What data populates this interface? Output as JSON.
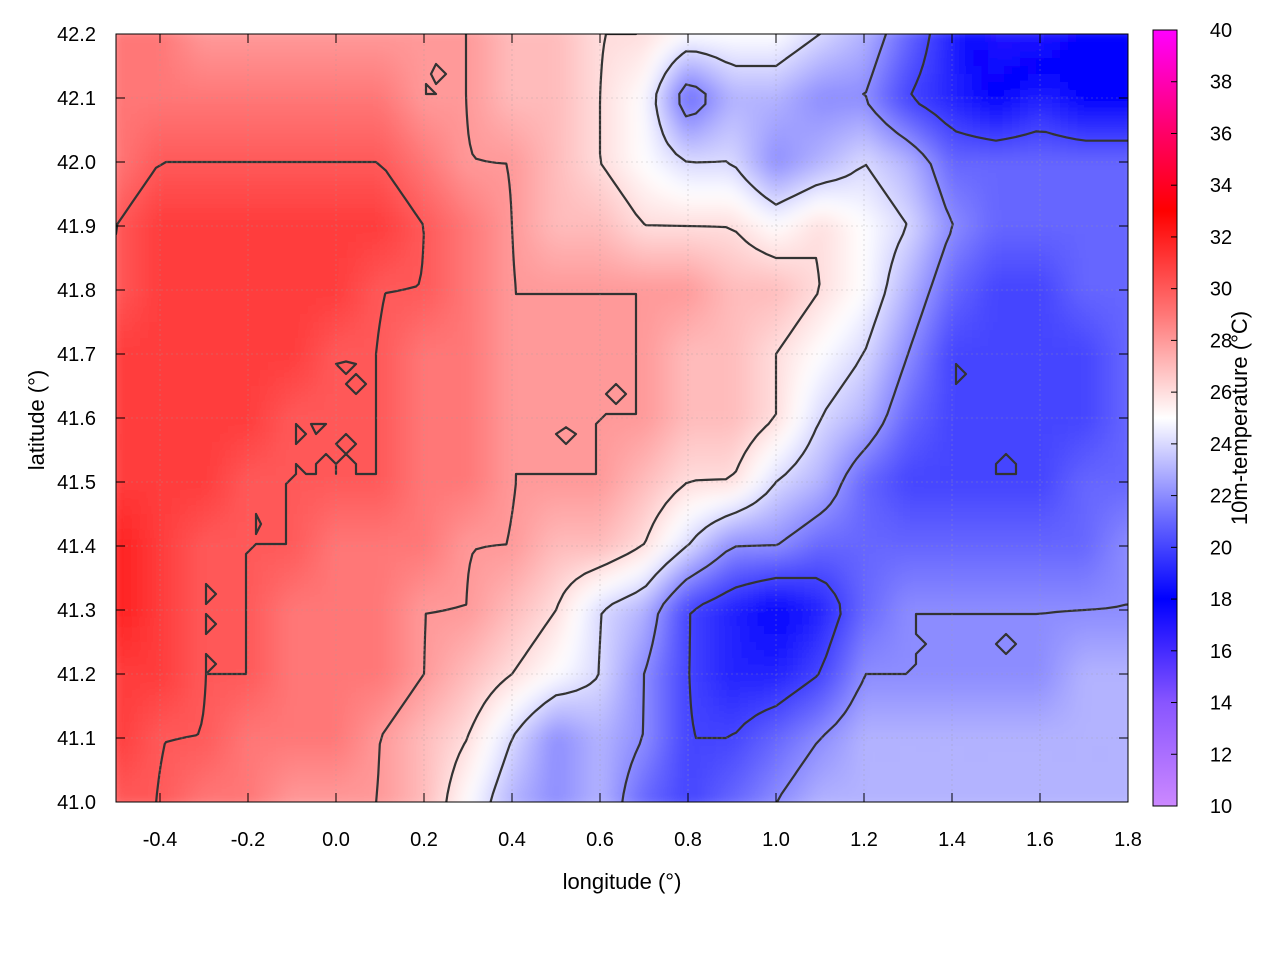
{
  "chart_data": {
    "type": "heatmap",
    "title": "",
    "xlabel": "longitude (°)",
    "ylabel": "latitude (°)",
    "colorbar_label": "10m-temperature (°C)",
    "xlim": [
      -0.5,
      1.8
    ],
    "ylim": [
      41.0,
      42.2
    ],
    "x_ticks": [
      "-0.4",
      "-0.2",
      "0.0",
      "0.2",
      "0.4",
      "0.6",
      "0.8",
      "1.0",
      "1.2",
      "1.4",
      "1.6",
      "1.8"
    ],
    "y_ticks": [
      "41.0",
      "41.1",
      "41.2",
      "41.3",
      "41.4",
      "41.5",
      "41.6",
      "41.7",
      "41.8",
      "41.9",
      "42.0",
      "42.1",
      "42.2"
    ],
    "colorbar_range": [
      10,
      40
    ],
    "colorbar_ticks": [
      "10",
      "12",
      "14",
      "16",
      "18",
      "20",
      "22",
      "24",
      "26",
      "28",
      "30",
      "32",
      "34",
      "36",
      "38",
      "40"
    ],
    "colormap": [
      {
        "value": 10,
        "color": "#cc88ff"
      },
      {
        "value": 14,
        "color": "#8855ff"
      },
      {
        "value": 18,
        "color": "#0000ff"
      },
      {
        "value": 21,
        "color": "#6666ff"
      },
      {
        "value": 25,
        "color": "#ffffff"
      },
      {
        "value": 29,
        "color": "#ff7777"
      },
      {
        "value": 33,
        "color": "#ff0000"
      },
      {
        "value": 36,
        "color": "#ff0066"
      },
      {
        "value": 40,
        "color": "#ff00ff"
      }
    ],
    "grid": true,
    "contour_color": "#333333",
    "field": {
      "longitudes": [
        -0.5,
        -0.4,
        -0.3,
        -0.2,
        -0.1,
        0.0,
        0.1,
        0.2,
        0.3,
        0.4,
        0.5,
        0.6,
        0.7,
        0.8,
        0.9,
        1.0,
        1.1,
        1.2,
        1.3,
        1.4,
        1.5,
        1.6,
        1.7,
        1.8
      ],
      "latitudes": [
        42.2,
        42.1,
        42.0,
        41.9,
        41.8,
        41.7,
        41.6,
        41.5,
        41.4,
        41.3,
        41.2,
        41.1,
        41.0
      ],
      "temperature": [
        [
          29,
          29,
          28,
          28,
          28,
          28,
          28,
          28,
          28,
          27,
          27,
          26,
          26,
          25,
          25,
          25,
          24,
          23,
          21,
          19,
          17,
          17,
          18,
          18
        ],
        [
          29,
          29,
          29,
          29,
          29,
          29,
          29,
          28,
          28,
          27,
          27,
          26,
          25,
          21,
          23,
          23,
          22,
          22,
          20,
          19,
          18,
          19,
          18,
          18
        ],
        [
          29,
          30,
          30,
          30,
          30,
          30,
          30,
          29,
          28,
          28,
          27,
          26,
          25,
          24,
          24,
          22,
          23,
          24,
          23,
          21,
          21,
          21,
          21,
          21
        ],
        [
          30,
          31,
          31,
          31,
          31,
          31,
          31,
          30,
          29,
          28,
          27,
          27,
          26,
          26,
          26,
          25,
          26,
          25,
          24,
          22,
          21,
          21,
          21,
          21
        ],
        [
          30,
          31,
          31,
          31,
          31,
          31,
          30,
          30,
          29,
          28,
          28,
          28,
          28,
          28,
          27,
          27,
          26,
          25,
          23,
          21,
          20,
          20,
          21,
          21
        ],
        [
          31,
          31,
          31,
          31,
          31,
          30,
          30,
          29,
          29,
          28,
          28,
          28,
          28,
          27,
          27,
          26,
          25,
          24,
          22,
          20,
          20,
          20,
          20,
          21
        ],
        [
          31,
          31,
          31,
          31,
          30,
          30,
          30,
          29,
          29,
          28,
          28,
          28,
          28,
          27,
          27,
          26,
          24,
          23,
          21,
          20,
          20,
          20,
          20,
          21
        ],
        [
          31,
          31,
          31,
          30,
          30,
          30,
          30,
          29,
          29,
          28,
          28,
          28,
          27,
          26,
          26,
          24,
          23,
          21,
          20,
          20,
          20,
          20,
          21,
          21
        ],
        [
          32,
          31,
          30,
          30,
          30,
          29,
          29,
          29,
          28,
          28,
          27,
          27,
          26,
          24,
          22,
          22,
          21,
          21,
          21,
          21,
          21,
          21,
          21,
          22
        ],
        [
          32,
          31,
          30,
          30,
          29,
          29,
          29,
          28,
          28,
          27,
          26,
          24,
          23,
          20,
          19,
          18,
          19,
          21,
          22,
          22,
          22,
          22,
          22,
          22
        ],
        [
          31,
          31,
          30,
          30,
          29,
          29,
          29,
          28,
          27,
          26,
          25,
          24,
          22,
          20,
          19,
          19,
          20,
          22,
          22,
          22,
          22,
          22,
          23,
          23
        ],
        [
          31,
          30,
          30,
          29,
          29,
          29,
          28,
          27,
          26,
          24,
          22,
          23,
          22,
          20,
          20,
          21,
          22,
          23,
          23,
          23,
          23,
          23,
          23,
          23
        ],
        [
          30,
          30,
          29,
          29,
          28,
          28,
          28,
          27,
          25,
          23,
          22,
          23,
          21,
          20,
          21,
          22,
          23,
          23,
          23,
          23,
          23,
          23,
          23,
          23
        ]
      ]
    }
  }
}
